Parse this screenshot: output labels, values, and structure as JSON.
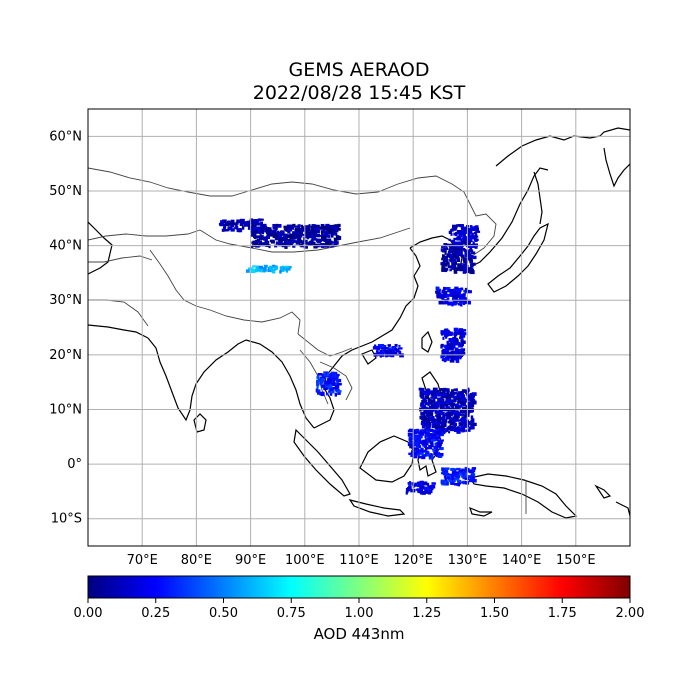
{
  "title": {
    "line1": "GEMS AERAOD",
    "line2": "2022/08/28 15:45 KST"
  },
  "map": {
    "lon_range": [
      60,
      160
    ],
    "lat_range": [
      -15,
      65
    ],
    "lat_ticks": [
      {
        "value": 60,
        "label": "60°N"
      },
      {
        "value": 50,
        "label": "50°N"
      },
      {
        "value": 40,
        "label": "40°N"
      },
      {
        "value": 30,
        "label": "30°N"
      },
      {
        "value": 20,
        "label": "20°N"
      },
      {
        "value": 10,
        "label": "10°N"
      },
      {
        "value": 0,
        "label": "0°"
      },
      {
        "value": -10,
        "label": "10°S"
      }
    ],
    "lon_ticks": [
      {
        "value": 70,
        "label": "70°E"
      },
      {
        "value": 80,
        "label": "80°E"
      },
      {
        "value": 90,
        "label": "90°E"
      },
      {
        "value": 100,
        "label": "100°E"
      },
      {
        "value": 110,
        "label": "110°E"
      },
      {
        "value": 120,
        "label": "120°E"
      },
      {
        "value": 130,
        "label": "130°E"
      },
      {
        "value": 140,
        "label": "140°E"
      },
      {
        "value": 150,
        "label": "150°E"
      }
    ],
    "grid": true
  },
  "colorbar": {
    "label": "AOD 443nm",
    "range": [
      0,
      2
    ],
    "ticks": [
      "0.00",
      "0.25",
      "0.50",
      "0.75",
      "1.00",
      "1.25",
      "1.50",
      "1.75",
      "2.00"
    ],
    "colors": [
      "#00007f",
      "#0000ff",
      "#007fff",
      "#00ffff",
      "#7fff7f",
      "#ffff00",
      "#ff7f00",
      "#ff0000",
      "#7f0000"
    ]
  },
  "aod_patches": [
    {
      "lon": 98,
      "lat": 42,
      "w": 16,
      "h": 4,
      "aod": 0.05
    },
    {
      "lon": 88,
      "lat": 44,
      "w": 8,
      "h": 2,
      "aod": 0.1
    },
    {
      "lon": 128,
      "lat": 38,
      "w": 6,
      "h": 5,
      "aod": 0.08
    },
    {
      "lon": 129,
      "lat": 42,
      "w": 5,
      "h": 4,
      "aod": 0.15
    },
    {
      "lon": 127,
      "lat": 31,
      "w": 6,
      "h": 3,
      "aod": 0.2
    },
    {
      "lon": 126,
      "lat": 10,
      "w": 10,
      "h": 8,
      "aod": 0.12
    },
    {
      "lon": 122,
      "lat": 4,
      "w": 6,
      "h": 5,
      "aod": 0.25
    },
    {
      "lon": 128,
      "lat": -2,
      "w": 6,
      "h": 3,
      "aod": 0.3
    },
    {
      "lon": 127,
      "lat": 22,
      "w": 4,
      "h": 6,
      "aod": 0.18
    },
    {
      "lon": 115,
      "lat": 21,
      "w": 5,
      "h": 2,
      "aod": 0.22
    },
    {
      "lon": 93,
      "lat": 36,
      "w": 8,
      "h": 1,
      "aod": 0.6
    },
    {
      "lon": 104,
      "lat": 15,
      "w": 4,
      "h": 4,
      "aod": 0.3
    },
    {
      "lon": 121,
      "lat": -4,
      "w": 5,
      "h": 2,
      "aod": 0.2
    }
  ]
}
